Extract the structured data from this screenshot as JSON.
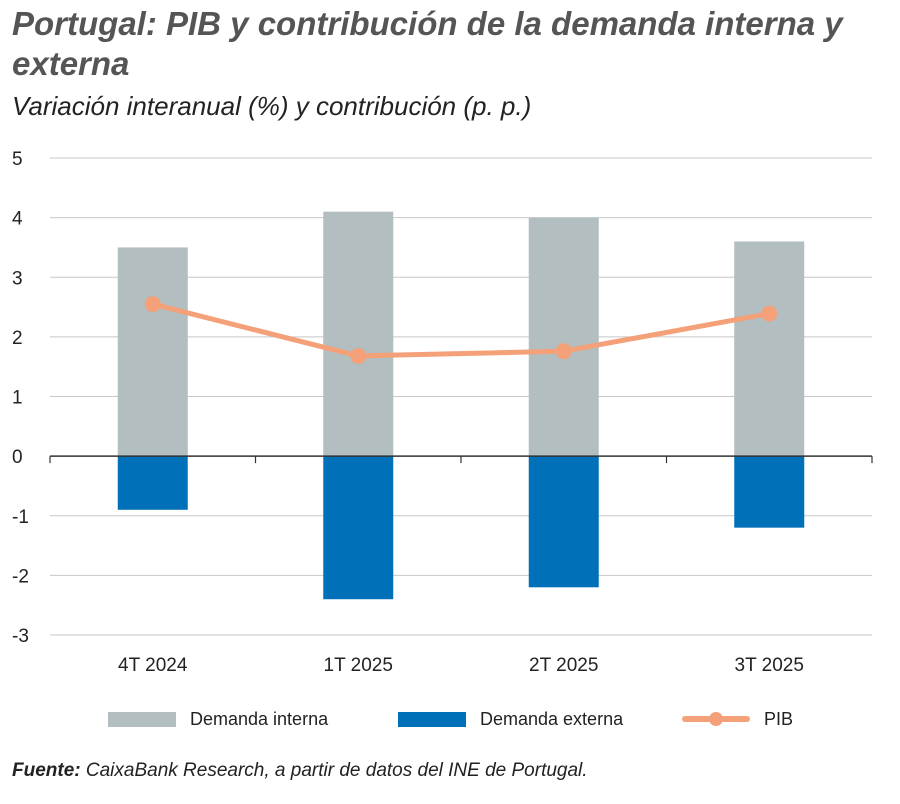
{
  "title": "Portugal: PIB y contribución de la demanda interna y externa",
  "subtitle": "Variación interanual (%) y contribución (p. p.)",
  "colors": {
    "interna": "#b3bec1",
    "externa": "#0070b8",
    "pib": "#f4a179",
    "grid": "#c8c8c8",
    "axis": "#333333"
  },
  "chart_data": {
    "type": "bar",
    "stacked": true,
    "categories": [
      "4T 2024",
      "1T 2025",
      "2T 2025",
      "3T 2025"
    ],
    "series": [
      {
        "name": "Demanda interna",
        "type": "bar",
        "values": [
          3.5,
          4.1,
          4.0,
          3.6
        ]
      },
      {
        "name": "Demanda externa",
        "type": "bar",
        "values": [
          -0.9,
          -2.4,
          -2.2,
          -1.2
        ]
      },
      {
        "name": "PIB",
        "type": "line",
        "values": [
          2.55,
          1.68,
          1.76,
          2.39
        ]
      }
    ],
    "ylim": [
      -3,
      5
    ],
    "yticks": [
      "5",
      "4",
      "3",
      "2",
      "1",
      "0",
      "-1",
      "-2",
      "-3"
    ],
    "grid": true,
    "legend": "bottom"
  },
  "source": {
    "label": "Fuente:",
    "text": " CaixaBank Research, a partir de datos del INE de Portugal."
  }
}
